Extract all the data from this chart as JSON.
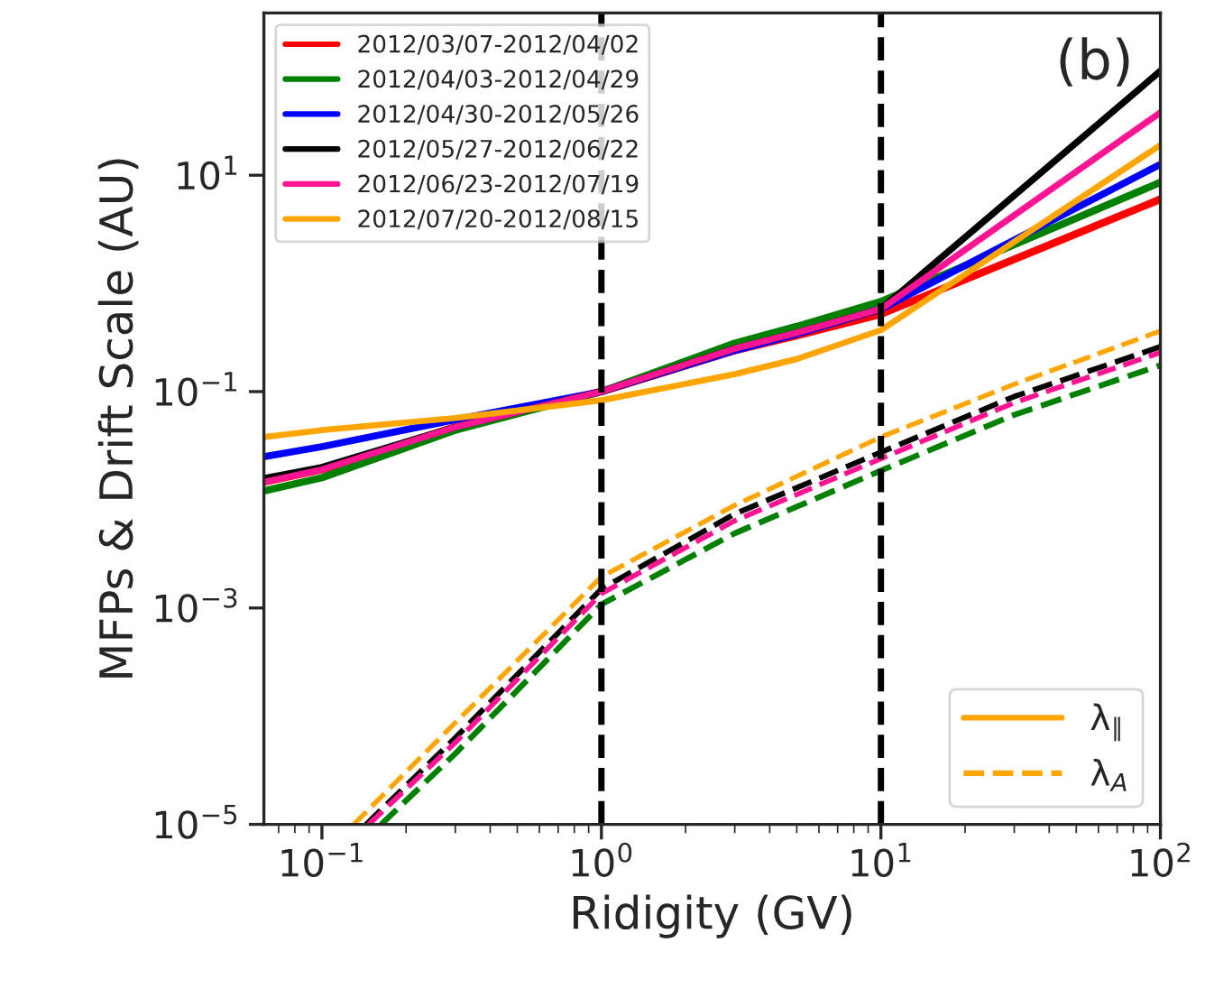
{
  "chart_data": {
    "type": "line",
    "xlabel": "Ridigity (GV)",
    "ylabel": "MFPs & Drift Scale (AU)",
    "log": "xy",
    "xlim": [
      0.062,
      100
    ],
    "ylim": [
      1e-05,
      316
    ],
    "xticks": [
      {
        "value": 0.1,
        "label": "10$^{−1}$"
      },
      {
        "value": 1,
        "label": "10$^{0}$"
      },
      {
        "value": 10,
        "label": "10$^{1}$"
      },
      {
        "value": 100,
        "label": "10$^{2}$"
      }
    ],
    "yticks": [
      {
        "value": 1e-05,
        "label": "10$^{−5}$"
      },
      {
        "value": 0.001,
        "label": "10$^{−3}$"
      },
      {
        "value": 0.1,
        "label": "10$^{−1}$"
      },
      {
        "value": 10,
        "label": "10$^{1}$"
      }
    ],
    "grid": false,
    "legend": "top left",
    "ref_lines": [
      {
        "axis": "x",
        "value": 1,
        "color": "#000000",
        "line_style": "dashed"
      },
      {
        "axis": "x",
        "value": 10,
        "color": "#000000",
        "line_style": "dashed"
      }
    ],
    "annotations": [
      "(b)",
      "λ$_{∥}$",
      "λ$_{A}$"
    ],
    "series": [
      {
        "name": "2012/03/07-2012/04/02",
        "color": "#ff0000",
        "line_style": "solid",
        "x": [
          0.062,
          0.1,
          0.3,
          1,
          3,
          5,
          10,
          100
        ],
        "values": [
          0.0146,
          0.019,
          0.047,
          0.1,
          0.24,
          0.33,
          0.52,
          6
        ]
      },
      {
        "name": "2012/04/03-2012/04/29",
        "color": "#008000",
        "line_style": "solid",
        "x": [
          0.062,
          0.1,
          0.3,
          1,
          3,
          5,
          10,
          100
        ],
        "values": [
          0.0121,
          0.016,
          0.044,
          0.1,
          0.28,
          0.4,
          0.68,
          8.6
        ]
      },
      {
        "name": "2012/04/30-2012/05/26",
        "color": "#0000ff",
        "line_style": "solid",
        "x": [
          0.062,
          0.1,
          0.3,
          1,
          3,
          5,
          10,
          100
        ],
        "values": [
          0.025,
          0.031,
          0.055,
          0.1,
          0.24,
          0.34,
          0.58,
          12.6
        ]
      },
      {
        "name": "2012/05/27-2012/06/22",
        "color": "#000000",
        "line_style": "solid",
        "x": [
          0.062,
          0.1,
          0.3,
          1,
          3,
          5,
          10,
          100
        ],
        "values": [
          0.0158,
          0.02,
          0.047,
          0.1,
          0.25,
          0.35,
          0.58,
          92
        ]
      },
      {
        "name": "2012/06/23-2012/07/19",
        "color": "#ff1493",
        "line_style": "solid",
        "x": [
          0.062,
          0.1,
          0.3,
          1,
          3,
          5,
          10,
          100
        ],
        "values": [
          0.0146,
          0.019,
          0.047,
          0.1,
          0.25,
          0.35,
          0.58,
          38
        ]
      },
      {
        "name": "2012/07/20-2012/08/15",
        "color": "#ffa500",
        "line_style": "solid",
        "x": [
          0.062,
          0.1,
          0.3,
          1,
          3,
          5,
          10,
          100
        ],
        "values": [
          0.038,
          0.044,
          0.057,
          0.083,
          0.145,
          0.2,
          0.37,
          19
        ]
      },
      {
        "color": "#008000",
        "line_style": "dashed",
        "x": [
          0.163,
          0.3,
          1,
          3,
          10,
          30,
          100
        ],
        "values": [
          1e-05,
          4.5e-05,
          0.00108,
          0.0049,
          0.0186,
          0.061,
          0.175
        ]
      },
      {
        "color": "#000000",
        "line_style": "dashed",
        "x": [
          0.144,
          0.3,
          1,
          3,
          10,
          30,
          100
        ],
        "values": [
          1e-05,
          6.3e-05,
          0.0015,
          0.0074,
          0.0275,
          0.09,
          0.26
        ]
      },
      {
        "color": "#ff1493",
        "line_style": "dashed",
        "x": [
          0.147,
          0.3,
          1,
          3,
          10,
          30,
          100
        ],
        "values": [
          1e-05,
          5.7e-05,
          0.00136,
          0.0064,
          0.024,
          0.079,
          0.23
        ]
      },
      {
        "color": "#ffa500",
        "line_style": "dashed",
        "x": [
          0.13,
          0.3,
          1,
          3,
          10,
          30,
          100
        ],
        "values": [
          1e-05,
          8.7e-05,
          0.00194,
          0.0089,
          0.038,
          0.117,
          0.363
        ]
      }
    ]
  }
}
